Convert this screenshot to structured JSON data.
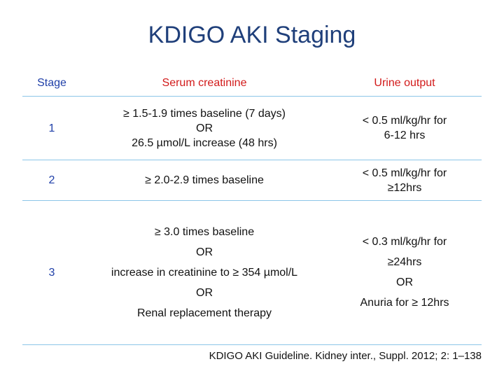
{
  "title": "KDIGO AKI Staging",
  "table": {
    "headers": {
      "stage": "Stage",
      "creatinine": "Serum creatinine",
      "urine": "Urine output"
    },
    "rows": [
      {
        "stage": "1",
        "creatinine": [
          "≥ 1.5-1.9 times baseline (7 days)",
          "OR",
          "26.5 µmol/L increase (48 hrs)"
        ],
        "urine": [
          "< 0.5 ml/kg/hr for",
          "6-12 hrs"
        ]
      },
      {
        "stage": "2",
        "creatinine": [
          "≥ 2.0-2.9 times baseline"
        ],
        "urine": [
          "< 0.5 ml/kg/hr for",
          "≥12hrs"
        ]
      },
      {
        "stage": "3",
        "creatinine": [
          "≥ 3.0 times baseline",
          "OR",
          "increase in creatinine to ≥ 354 µmol/L",
          "OR",
          "Renal replacement therapy"
        ],
        "urine": [
          "< 0.3 ml/kg/hr for",
          "≥24hrs",
          "OR",
          "Anuria for ≥ 12hrs"
        ]
      }
    ]
  },
  "footnote": "KDIGO AKI Guideline. Kidney inter., Suppl. 2012; 2: 1–138",
  "colors": {
    "title": "#1f3f7a",
    "stage_text": "#1f3fa8",
    "header_accent": "#d21a1a",
    "row_divider": "#8cc6e8"
  }
}
